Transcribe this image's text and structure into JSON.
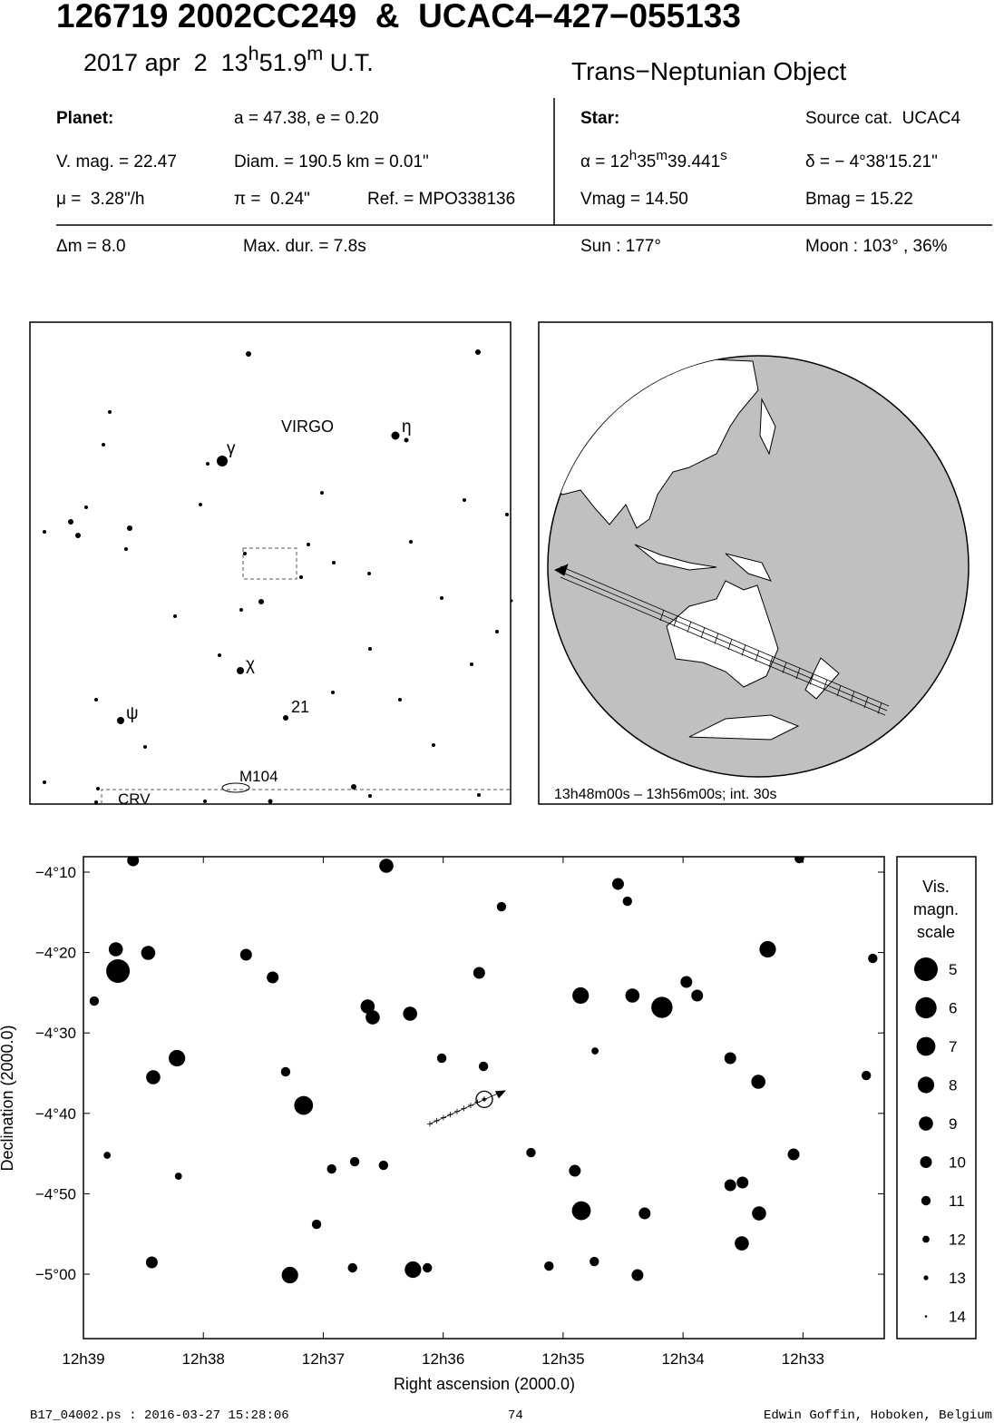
{
  "header": {
    "title": "126719 2002CC249  &  UCAC4−427−055133",
    "date": [
      "2017 apr  2  13",
      "h",
      "51.9",
      "m",
      " U.T."
    ],
    "object_type": "Trans−Neptunian Object"
  },
  "planet": {
    "heading": "Planet:",
    "orbit": "a = 47.38, e = 0.20",
    "vmag": "V. mag. = 22.47",
    "diam": "Diam. = 190.5 km = 0.01\"",
    "motion": "μ =  3.28\"/h",
    "parallax": "π =  0.24\"",
    "ref": "Ref. = MPO338136"
  },
  "star": {
    "heading": "Star:",
    "source": "Source cat.  UCAC4",
    "alpha": [
      "α = 12",
      "h",
      "35",
      "m",
      "39.441",
      "s"
    ],
    "delta": "δ = − 4°38'15.21\"",
    "vmag": "Vmag = 14.50",
    "bmag": "Bmag = 15.22"
  },
  "event": {
    "dm": "Δm = 8.0",
    "duration": "Max. dur. = 7.8s",
    "sun": "Sun : 177°",
    "moon": "Moon : 103° , 36%"
  },
  "finder": {
    "labels": [
      "VIRGO",
      "γ",
      "η",
      "χ",
      "ψ",
      "21",
      "M104",
      "CRV"
    ]
  },
  "globe": {
    "caption": "13h48m00s – 13h56m00s; int. 30s"
  },
  "chart_data": {
    "type": "scatter",
    "x_label": "Right ascension (2000.0)",
    "y_label": "Declination (2000.0)",
    "xlim": [
      12.65,
      12.5387
    ],
    "ylim": [
      -5.1335,
      -4.1347
    ],
    "xticks": [
      {
        "value": 12.65,
        "label": "12h39"
      },
      {
        "value": 12.633333,
        "label": "12h38"
      },
      {
        "value": 12.616667,
        "label": "12h37"
      },
      {
        "value": 12.6,
        "label": "12h36"
      },
      {
        "value": 12.583333,
        "label": "12h35"
      },
      {
        "value": 12.566667,
        "label": "12h34"
      },
      {
        "value": 12.55,
        "label": "12h33"
      }
    ],
    "yticks": [
      {
        "value": -4.166667,
        "label": "−4°10"
      },
      {
        "value": -4.333333,
        "label": "−4°20"
      },
      {
        "value": -4.5,
        "label": "−4°30"
      },
      {
        "value": -4.666667,
        "label": "−4°40"
      },
      {
        "value": -4.833333,
        "label": "−4°50"
      },
      {
        "value": -5.0,
        "label": "−5°00"
      }
    ],
    "x": [
      12.6452,
      12.5696,
      12.6194,
      12.5808,
      12.637,
      12.6042,
      12.6213,
      12.5549,
      12.5809,
      12.6455,
      12.641,
      12.6403,
      12.6105,
      12.6098,
      12.6046,
      12.5737,
      12.5647,
      12.5662,
      12.5562,
      12.5585,
      12.5561,
      12.5584,
      12.5601,
      12.6079,
      12.6431,
      12.595,
      12.6237,
      12.6274,
      12.5817,
      12.572,
      12.5513,
      12.573,
      12.5601,
      12.5757,
      12.6405,
      12.6219,
      12.6123,
      12.6155,
      12.6083,
      12.6176,
      12.6002,
      12.5944,
      12.5878,
      12.6467,
      12.5919,
      12.5744,
      12.6368,
      12.5412,
      12.5403,
      12.5505,
      12.6485,
      12.5853,
      12.579,
      12.6126,
      12.6022,
      12.5789
    ],
    "values": [
      -4.3717,
      -4.447,
      -4.6502,
      -4.8684,
      -4.5523,
      -4.9906,
      -5.0019,
      -4.3266,
      -4.4225,
      -4.3266,
      -4.3341,
      -4.5918,
      -4.4451,
      -4.4677,
      -4.4601,
      -4.4225,
      -4.4225,
      -4.3943,
      -4.6012,
      -4.9361,
      -4.874,
      -4.81,
      -4.8156,
      -4.1535,
      -4.1422,
      -4.3755,
      -4.3849,
      -4.3379,
      -4.7856,
      -4.874,
      -4.7517,
      -5.0019,
      -4.5523,
      -4.1912,
      -4.9755,
      -4.5805,
      -4.7668,
      -4.7818,
      -4.7743,
      -4.8966,
      -4.5523,
      -4.5692,
      -4.748,
      -4.7536,
      -4.2382,
      -4.2269,
      -4.7969,
      -4.5881,
      -4.3454,
      -4.1385,
      -4.4338,
      -4.9831,
      -4.9737,
      -4.9868,
      -4.9868,
      -4.5373
    ],
    "magnitudes": [
      5,
      6,
      7,
      7,
      8,
      8,
      8,
      8,
      8,
      9,
      9,
      9,
      9,
      9,
      9,
      9,
      10,
      10,
      9,
      9,
      9,
      10,
      10,
      9,
      10,
      10,
      10,
      10,
      10,
      10,
      10,
      10,
      10,
      10,
      10,
      11,
      11,
      11,
      11,
      11,
      11,
      11,
      11,
      12,
      11,
      11,
      12,
      11,
      11,
      11,
      11,
      11,
      11,
      11,
      11,
      12
    ],
    "target": {
      "x": 12.59429,
      "y": -4.63756
    },
    "size_legend": {
      "title": [
        "Vis.",
        "magn.",
        "scale"
      ],
      "values": [
        5,
        6,
        7,
        8,
        9,
        10,
        11,
        12,
        13,
        14
      ]
    }
  },
  "footer": {
    "file": "B17_04002.ps : 2016-03-27 15:28:06",
    "page": "74",
    "author": "Edwin Goffin, Hoboken, Belgium"
  }
}
